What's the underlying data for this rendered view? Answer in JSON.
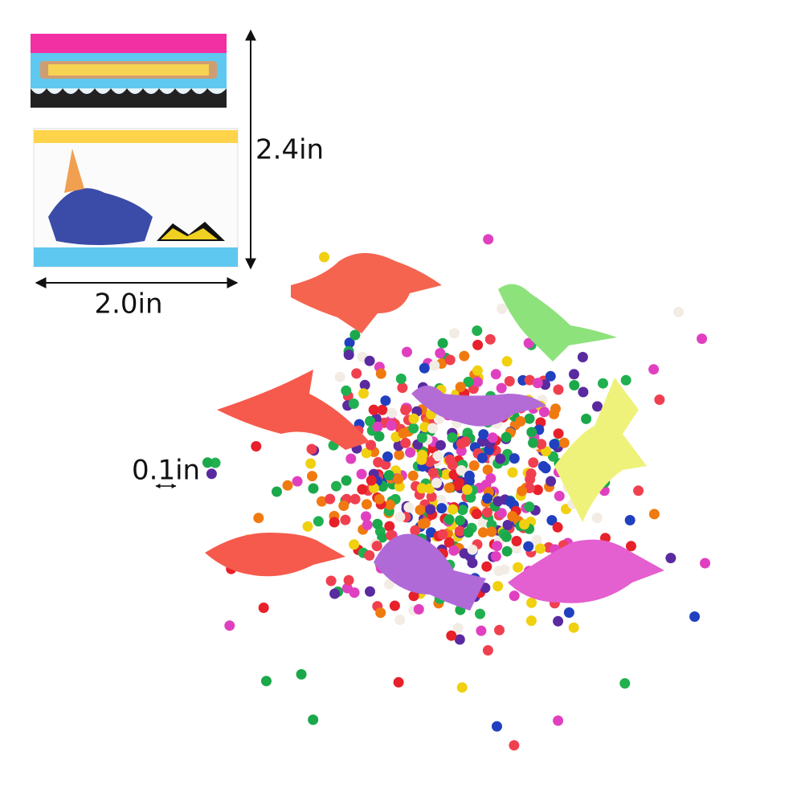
{
  "dimensions": {
    "height": "2.4in",
    "width": "2.0in",
    "bead_size": "0.1in"
  }
}
